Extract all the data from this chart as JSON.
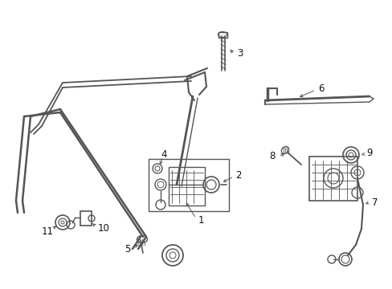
{
  "bg_color": "#ffffff",
  "line_color": "#555555",
  "label_color": "#111111",
  "label_fontsize": 8.5,
  "figsize": [
    4.89,
    3.6
  ],
  "dpi": 100
}
